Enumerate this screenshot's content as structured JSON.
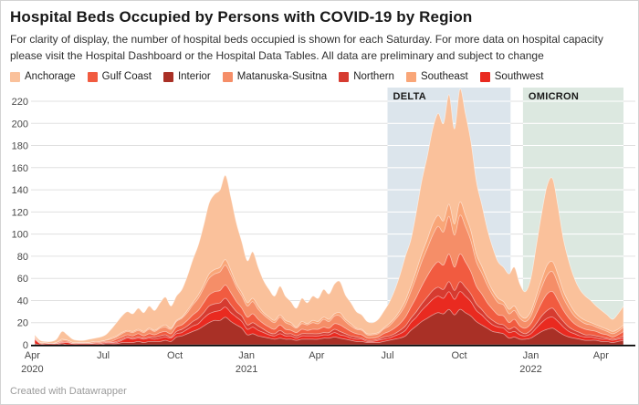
{
  "header": {
    "title": "Hospital Beds Occupied by Persons with COVID-19 by Region",
    "description": "For clarity of display, the number of hospital beds occupied is shown for each Saturday. For more data on hospital capacity please visit the Hospital Dashboard or the Hospital Data Tables. All data are preliminary and subject to change"
  },
  "legend": [
    {
      "label": "Anchorage",
      "color": "#FAC19B"
    },
    {
      "label": "Gulf Coast",
      "color": "#F15B40"
    },
    {
      "label": "Interior",
      "color": "#A93026"
    },
    {
      "label": "Matanuska-Susitna",
      "color": "#F58E68"
    },
    {
      "label": "Northern",
      "color": "#D63B30"
    },
    {
      "label": "Southeast",
      "color": "#F9A678"
    },
    {
      "label": "Southwest",
      "color": "#E92A20"
    }
  ],
  "chart_data": {
    "type": "area",
    "stacked": true,
    "title": "Hospital Beds Occupied by Persons with COVID-19 by Region",
    "x_unit": "weekly Saturdays",
    "x_start": "2020-04-04",
    "x_end": "2022-04-30",
    "x_interval_days": 7,
    "ylim": [
      0,
      232
    ],
    "yticks": [
      0,
      20,
      40,
      60,
      80,
      100,
      120,
      140,
      160,
      180,
      200,
      220
    ],
    "xticks": [
      {
        "month": "Apr",
        "year": "2020",
        "day": -3
      },
      {
        "month": "Jul",
        "year": "",
        "day": 88
      },
      {
        "month": "Oct",
        "year": "",
        "day": 180
      },
      {
        "month": "Jan",
        "year": "2021",
        "day": 272
      },
      {
        "month": "Apr",
        "year": "",
        "day": 362
      },
      {
        "month": "Jul",
        "year": "",
        "day": 453
      },
      {
        "month": "Oct",
        "year": "",
        "day": 545
      },
      {
        "month": "Jan",
        "year": "2022",
        "day": 637
      },
      {
        "month": "Apr",
        "year": "",
        "day": 727
      }
    ],
    "annotations": [
      {
        "label": "DELTA",
        "from_day": 453,
        "to_day": 611,
        "color": "#dce5ec"
      },
      {
        "label": "OMICRON",
        "from_day": 627,
        "to_day": 756,
        "color": "#dce8e0"
      }
    ],
    "grid": true,
    "legend_position": "top",
    "stack_order_note": "series listed bottom-to-top of the stack",
    "series": [
      {
        "name": "Interior",
        "color": "#A93026",
        "values": [
          1,
          0,
          0,
          0,
          0,
          1,
          0,
          0,
          0,
          0,
          0,
          0,
          0,
          1,
          1,
          1,
          2,
          2,
          2,
          3,
          2,
          3,
          3,
          3,
          4,
          3,
          7,
          8,
          10,
          12,
          14,
          17,
          20,
          22,
          22,
          25,
          21,
          18,
          15,
          9,
          10,
          8,
          7,
          6,
          5,
          6,
          5,
          5,
          4,
          5,
          5,
          5,
          5,
          6,
          6,
          7,
          6,
          5,
          4,
          3,
          3,
          2,
          2,
          2,
          3,
          4,
          5,
          6,
          8,
          13,
          17,
          21,
          24,
          27,
          29,
          28,
          32,
          27,
          32,
          29,
          26,
          21,
          18,
          15,
          12,
          11,
          10,
          6,
          7,
          5,
          5,
          6,
          9,
          12,
          14,
          15,
          12,
          9,
          7,
          6,
          5,
          4,
          4,
          4,
          3,
          3,
          2,
          3,
          4
        ]
      },
      {
        "name": "Southwest",
        "color": "#E92A20",
        "values": [
          4,
          1,
          1,
          1,
          1,
          1,
          2,
          1,
          1,
          1,
          1,
          1,
          1,
          1,
          1,
          1,
          2,
          4,
          3,
          3,
          3,
          3,
          2,
          3,
          3,
          3,
          3,
          3,
          4,
          5,
          5,
          7,
          8,
          8,
          9,
          9,
          8,
          7,
          6,
          5,
          6,
          5,
          4,
          3,
          3,
          4,
          3,
          3,
          2,
          3,
          3,
          3,
          3,
          3,
          3,
          4,
          3,
          3,
          2,
          2,
          2,
          1,
          1,
          2,
          2,
          2,
          3,
          4,
          5,
          7,
          8,
          10,
          12,
          14,
          15,
          14,
          16,
          14,
          16,
          15,
          13,
          10,
          9,
          7,
          6,
          5,
          5,
          5,
          5,
          4,
          3,
          4,
          6,
          8,
          10,
          10,
          9,
          7,
          5,
          4,
          3,
          3,
          3,
          2,
          2,
          2,
          2,
          2,
          2
        ]
      },
      {
        "name": "Northern",
        "color": "#D63B30",
        "values": [
          0,
          0,
          0,
          0,
          0,
          0,
          0,
          0,
          0,
          0,
          0,
          0,
          0,
          0,
          0,
          1,
          1,
          1,
          1,
          1,
          1,
          1,
          2,
          2,
          2,
          1,
          2,
          3,
          3,
          4,
          5,
          5,
          7,
          7,
          7,
          8,
          7,
          5,
          5,
          4,
          4,
          4,
          3,
          2,
          2,
          3,
          2,
          2,
          2,
          2,
          2,
          2,
          2,
          2,
          2,
          3,
          3,
          2,
          2,
          2,
          1,
          1,
          1,
          1,
          2,
          2,
          2,
          3,
          4,
          4,
          5,
          6,
          7,
          8,
          8,
          8,
          9,
          8,
          9,
          8,
          7,
          6,
          5,
          4,
          4,
          3,
          3,
          3,
          4,
          3,
          2,
          3,
          4,
          6,
          7,
          8,
          6,
          5,
          4,
          3,
          3,
          2,
          2,
          2,
          2,
          1,
          1,
          1,
          2
        ]
      },
      {
        "name": "Gulf Coast",
        "color": "#F15B40",
        "values": [
          1,
          0,
          0,
          0,
          0,
          1,
          1,
          0,
          0,
          0,
          0,
          1,
          1,
          1,
          1,
          2,
          2,
          2,
          2,
          3,
          2,
          3,
          2,
          3,
          3,
          3,
          4,
          4,
          5,
          6,
          7,
          9,
          10,
          11,
          11,
          12,
          11,
          9,
          7,
          7,
          8,
          6,
          5,
          5,
          4,
          5,
          4,
          3,
          3,
          4,
          3,
          4,
          4,
          5,
          4,
          5,
          6,
          5,
          4,
          3,
          3,
          2,
          2,
          2,
          3,
          4,
          5,
          6,
          8,
          10,
          13,
          16,
          19,
          21,
          23,
          22,
          25,
          21,
          25,
          23,
          20,
          16,
          14,
          12,
          10,
          8,
          8,
          6,
          7,
          5,
          5,
          6,
          9,
          12,
          15,
          15,
          13,
          10,
          8,
          6,
          5,
          5,
          4,
          4,
          3,
          3,
          2,
          3,
          4
        ]
      },
      {
        "name": "Matanuska-Susitna",
        "color": "#F58E68",
        "values": [
          1,
          1,
          1,
          0,
          1,
          1,
          1,
          1,
          1,
          1,
          1,
          1,
          1,
          1,
          2,
          2,
          3,
          3,
          3,
          3,
          3,
          4,
          3,
          4,
          4,
          4,
          5,
          6,
          7,
          9,
          11,
          13,
          15,
          16,
          17,
          18,
          16,
          13,
          11,
          10,
          11,
          9,
          8,
          7,
          6,
          7,
          6,
          5,
          4,
          5,
          5,
          6,
          5,
          7,
          6,
          7,
          8,
          6,
          5,
          4,
          4,
          3,
          3,
          3,
          4,
          5,
          7,
          9,
          11,
          14,
          18,
          22,
          25,
          29,
          32,
          30,
          34,
          29,
          35,
          32,
          28,
          22,
          19,
          16,
          13,
          11,
          10,
          8,
          8,
          7,
          6,
          7,
          11,
          14,
          17,
          18,
          15,
          11,
          9,
          7,
          6,
          5,
          5,
          4,
          4,
          3,
          3,
          3,
          4
        ]
      },
      {
        "name": "Southeast",
        "color": "#F9A678",
        "values": [
          0,
          0,
          0,
          0,
          0,
          1,
          0,
          0,
          0,
          0,
          0,
          0,
          0,
          0,
          1,
          1,
          1,
          1,
          1,
          1,
          1,
          1,
          1,
          1,
          2,
          1,
          1,
          1,
          2,
          2,
          3,
          3,
          4,
          4,
          4,
          5,
          4,
          3,
          3,
          3,
          3,
          3,
          2,
          2,
          2,
          2,
          2,
          2,
          1,
          2,
          1,
          2,
          2,
          2,
          2,
          2,
          3,
          2,
          2,
          1,
          1,
          1,
          1,
          1,
          1,
          2,
          2,
          3,
          4,
          5,
          6,
          7,
          8,
          10,
          10,
          10,
          11,
          10,
          12,
          10,
          9,
          7,
          6,
          5,
          4,
          4,
          3,
          4,
          4,
          3,
          3,
          4,
          5,
          7,
          9,
          9,
          8,
          6,
          5,
          4,
          3,
          3,
          2,
          2,
          2,
          2,
          2,
          2,
          2
        ]
      },
      {
        "name": "Anchorage",
        "color": "#FAC19B",
        "values": [
          2,
          2,
          1,
          2,
          3,
          7,
          5,
          3,
          2,
          2,
          3,
          3,
          4,
          5,
          8,
          12,
          15,
          17,
          16,
          19,
          17,
          20,
          18,
          22,
          25,
          20,
          22,
          25,
          31,
          39,
          45,
          54,
          64,
          68,
          70,
          76,
          66,
          55,
          46,
          38,
          42,
          35,
          29,
          25,
          22,
          26,
          22,
          19,
          17,
          21,
          19,
          22,
          21,
          25,
          23,
          27,
          28,
          22,
          19,
          15,
          13,
          11,
          10,
          12,
          15,
          19,
          25,
          32,
          40,
          42,
          53,
          66,
          75,
          86,
          92,
          88,
          99,
          86,
          102,
          92,
          81,
          66,
          56,
          46,
          39,
          33,
          31,
          32,
          35,
          28,
          24,
          30,
          45,
          60,
          72,
          75,
          62,
          47,
          37,
          30,
          25,
          22,
          20,
          17,
          15,
          13,
          11,
          14,
          17
        ]
      }
    ]
  },
  "footer": {
    "credit": "Created with Datawrapper"
  }
}
